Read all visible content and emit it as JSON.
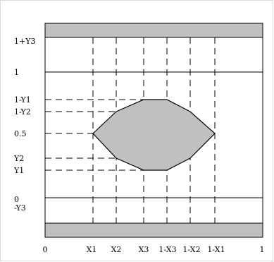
{
  "diagram": {
    "y_labels": {
      "one_plus_y3": "1+Y3",
      "one": "1",
      "one_minus_y1": "1-Y1",
      "one_minus_y2": "1-Y2",
      "half": "0.5",
      "y2": "Y2",
      "y1": "Y1",
      "zero": "0",
      "minus_y3": "-Y3"
    },
    "x_labels": {
      "zero": "0",
      "x1": "X1",
      "x2": "X2",
      "x3": "X3",
      "one_minus_x3": "1-X3",
      "one_minus_x2": "1-X2",
      "one_minus_x1": "1-X1",
      "one": "1"
    },
    "colors": {
      "band_fill": "#c0c0c0",
      "octagon_fill": "#c0c0c0",
      "stroke": "#000000"
    }
  }
}
